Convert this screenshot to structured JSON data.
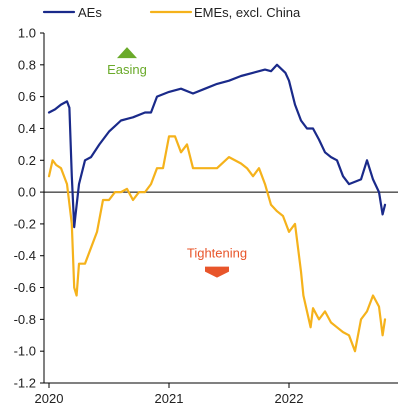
{
  "chart_data": {
    "type": "line",
    "title": "",
    "xlabel": "",
    "ylabel": "",
    "ylim": [
      -1.2,
      1.0
    ],
    "yticks": [
      1.0,
      0.8,
      0.6,
      0.4,
      0.2,
      0.0,
      -0.2,
      -0.4,
      -0.6,
      -0.8,
      -1.0,
      -1.2
    ],
    "ytick_labels": [
      "1.0",
      "0.8",
      "0.6",
      "0.4",
      "0.2",
      "0.0",
      "-0.2",
      "-0.4",
      "-0.6",
      "-0.8",
      "-1.0",
      "-1.2"
    ],
    "xlim": [
      2020.0,
      2022.8
    ],
    "xticks": [
      2020,
      2021,
      2022
    ],
    "xtick_labels": [
      "2020",
      "2021",
      "2022"
    ],
    "grid": false,
    "legend_position": "top",
    "series": [
      {
        "name": "AEs",
        "color": "#1a2a8a",
        "points": [
          [
            2020.0,
            0.5
          ],
          [
            2020.05,
            0.52
          ],
          [
            2020.1,
            0.55
          ],
          [
            2020.15,
            0.57
          ],
          [
            2020.17,
            0.53
          ],
          [
            2020.19,
            0.1
          ],
          [
            2020.21,
            -0.22
          ],
          [
            2020.22,
            -0.15
          ],
          [
            2020.25,
            0.05
          ],
          [
            2020.3,
            0.2
          ],
          [
            2020.35,
            0.22
          ],
          [
            2020.42,
            0.3
          ],
          [
            2020.5,
            0.38
          ],
          [
            2020.6,
            0.45
          ],
          [
            2020.7,
            0.47
          ],
          [
            2020.8,
            0.5
          ],
          [
            2020.85,
            0.5
          ],
          [
            2020.9,
            0.6
          ],
          [
            2021.0,
            0.63
          ],
          [
            2021.1,
            0.65
          ],
          [
            2021.2,
            0.62
          ],
          [
            2021.3,
            0.65
          ],
          [
            2021.4,
            0.68
          ],
          [
            2021.5,
            0.7
          ],
          [
            2021.6,
            0.73
          ],
          [
            2021.7,
            0.75
          ],
          [
            2021.8,
            0.77
          ],
          [
            2021.85,
            0.76
          ],
          [
            2021.9,
            0.8
          ],
          [
            2021.97,
            0.75
          ],
          [
            2022.0,
            0.7
          ],
          [
            2022.05,
            0.55
          ],
          [
            2022.1,
            0.45
          ],
          [
            2022.15,
            0.4
          ],
          [
            2022.2,
            0.4
          ],
          [
            2022.25,
            0.33
          ],
          [
            2022.3,
            0.25
          ],
          [
            2022.35,
            0.22
          ],
          [
            2022.4,
            0.2
          ],
          [
            2022.45,
            0.1
          ],
          [
            2022.5,
            0.05
          ],
          [
            2022.6,
            0.08
          ],
          [
            2022.65,
            0.2
          ],
          [
            2022.7,
            0.08
          ],
          [
            2022.75,
            0.0
          ],
          [
            2022.78,
            -0.14
          ],
          [
            2022.8,
            -0.08
          ]
        ]
      },
      {
        "name": "EMEs, excl. China",
        "color": "#f5b21b",
        "points": [
          [
            2020.0,
            0.1
          ],
          [
            2020.03,
            0.2
          ],
          [
            2020.06,
            0.17
          ],
          [
            2020.1,
            0.15
          ],
          [
            2020.15,
            0.05
          ],
          [
            2020.19,
            -0.2
          ],
          [
            2020.21,
            -0.6
          ],
          [
            2020.23,
            -0.65
          ],
          [
            2020.25,
            -0.45
          ],
          [
            2020.3,
            -0.45
          ],
          [
            2020.35,
            -0.35
          ],
          [
            2020.4,
            -0.25
          ],
          [
            2020.45,
            -0.05
          ],
          [
            2020.5,
            -0.05
          ],
          [
            2020.55,
            0.0
          ],
          [
            2020.6,
            0.0
          ],
          [
            2020.65,
            0.02
          ],
          [
            2020.7,
            -0.05
          ],
          [
            2020.75,
            0.0
          ],
          [
            2020.8,
            0.0
          ],
          [
            2020.85,
            0.05
          ],
          [
            2020.9,
            0.15
          ],
          [
            2020.95,
            0.15
          ],
          [
            2021.0,
            0.35
          ],
          [
            2021.05,
            0.35
          ],
          [
            2021.1,
            0.25
          ],
          [
            2021.15,
            0.3
          ],
          [
            2021.2,
            0.15
          ],
          [
            2021.3,
            0.15
          ],
          [
            2021.4,
            0.15
          ],
          [
            2021.5,
            0.22
          ],
          [
            2021.6,
            0.18
          ],
          [
            2021.65,
            0.15
          ],
          [
            2021.7,
            0.1
          ],
          [
            2021.75,
            0.15
          ],
          [
            2021.8,
            0.05
          ],
          [
            2021.85,
            -0.08
          ],
          [
            2021.9,
            -0.12
          ],
          [
            2021.95,
            -0.15
          ],
          [
            2022.0,
            -0.25
          ],
          [
            2022.05,
            -0.2
          ],
          [
            2022.1,
            -0.5
          ],
          [
            2022.12,
            -0.65
          ],
          [
            2022.15,
            -0.75
          ],
          [
            2022.18,
            -0.85
          ],
          [
            2022.2,
            -0.73
          ],
          [
            2022.25,
            -0.8
          ],
          [
            2022.3,
            -0.75
          ],
          [
            2022.35,
            -0.82
          ],
          [
            2022.4,
            -0.85
          ],
          [
            2022.45,
            -0.88
          ],
          [
            2022.5,
            -0.9
          ],
          [
            2022.55,
            -1.0
          ],
          [
            2022.6,
            -0.8
          ],
          [
            2022.65,
            -0.75
          ],
          [
            2022.7,
            -0.65
          ],
          [
            2022.75,
            -0.72
          ],
          [
            2022.78,
            -0.9
          ],
          [
            2022.8,
            -0.8
          ]
        ]
      }
    ],
    "annotations": [
      {
        "text": "Easing",
        "color": "#6aaa2a",
        "marker": "up-triangle",
        "x": 2020.65,
        "y": 0.88
      },
      {
        "text": "Tightening",
        "color": "#e8552a",
        "marker": "down-triangle",
        "x": 2021.4,
        "y": -0.45
      }
    ]
  }
}
